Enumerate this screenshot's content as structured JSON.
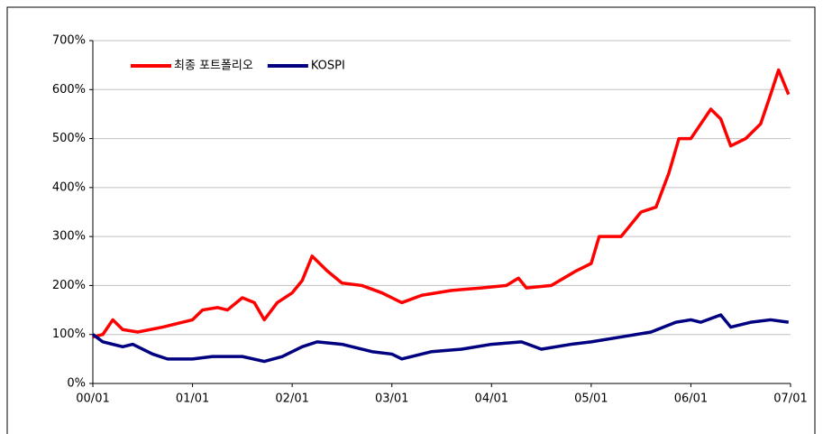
{
  "chart_data": {
    "type": "line",
    "series": [
      {
        "name": "최종 포트폴리오",
        "color": "#ff0000",
        "x": [
          0,
          0.1,
          0.2,
          0.3,
          0.45,
          0.7,
          1.0,
          1.1,
          1.25,
          1.35,
          1.5,
          1.62,
          1.72,
          1.85,
          2.0,
          2.1,
          2.2,
          2.35,
          2.5,
          2.7,
          2.9,
          3.1,
          3.3,
          3.6,
          3.9,
          4.15,
          4.27,
          4.35,
          4.6,
          4.85,
          5.0,
          5.08,
          5.3,
          5.5,
          5.65,
          5.78,
          5.88,
          6.0,
          6.1,
          6.2,
          6.3,
          6.4,
          6.55,
          6.7,
          6.8,
          6.88,
          6.98
        ],
        "values": [
          95,
          100,
          130,
          110,
          105,
          115,
          130,
          150,
          155,
          150,
          175,
          165,
          130,
          165,
          185,
          210,
          260,
          230,
          205,
          200,
          185,
          165,
          180,
          190,
          195,
          200,
          215,
          195,
          200,
          230,
          245,
          300,
          300,
          350,
          360,
          430,
          500,
          500,
          530,
          560,
          540,
          485,
          500,
          530,
          590,
          640,
          590
        ]
      },
      {
        "name": "KOSPI",
        "color": "#000080",
        "x": [
          0,
          0.1,
          0.3,
          0.4,
          0.6,
          0.75,
          1.0,
          1.2,
          1.5,
          1.72,
          1.9,
          2.1,
          2.25,
          2.5,
          2.8,
          3.0,
          3.1,
          3.4,
          3.7,
          4.0,
          4.3,
          4.5,
          4.8,
          5.0,
          5.3,
          5.6,
          5.85,
          6.0,
          6.1,
          6.3,
          6.4,
          6.6,
          6.8,
          6.98
        ],
        "values": [
          100,
          85,
          75,
          80,
          60,
          50,
          50,
          55,
          55,
          45,
          55,
          75,
          85,
          80,
          65,
          60,
          50,
          65,
          70,
          80,
          85,
          70,
          80,
          85,
          95,
          105,
          125,
          130,
          125,
          140,
          115,
          125,
          130,
          125
        ]
      }
    ],
    "xlim": [
      0,
      7
    ],
    "xticks": [
      {
        "value": 0,
        "label": "00/01"
      },
      {
        "value": 1,
        "label": "01/01"
      },
      {
        "value": 2,
        "label": "02/01"
      },
      {
        "value": 3,
        "label": "03/01"
      },
      {
        "value": 4,
        "label": "04/01"
      },
      {
        "value": 5,
        "label": "05/01"
      },
      {
        "value": 6,
        "label": "06/01"
      },
      {
        "value": 7,
        "label": "07/01"
      }
    ],
    "ylim": [
      0,
      700
    ],
    "yticks": [
      {
        "value": 0,
        "label": "0%"
      },
      {
        "value": 100,
        "label": "100%"
      },
      {
        "value": 200,
        "label": "200%"
      },
      {
        "value": 300,
        "label": "300%"
      },
      {
        "value": 400,
        "label": "400%"
      },
      {
        "value": 500,
        "label": "500%"
      },
      {
        "value": 600,
        "label": "600%"
      },
      {
        "value": 700,
        "label": "700%"
      }
    ],
    "grid": true,
    "legend": "top-left"
  }
}
